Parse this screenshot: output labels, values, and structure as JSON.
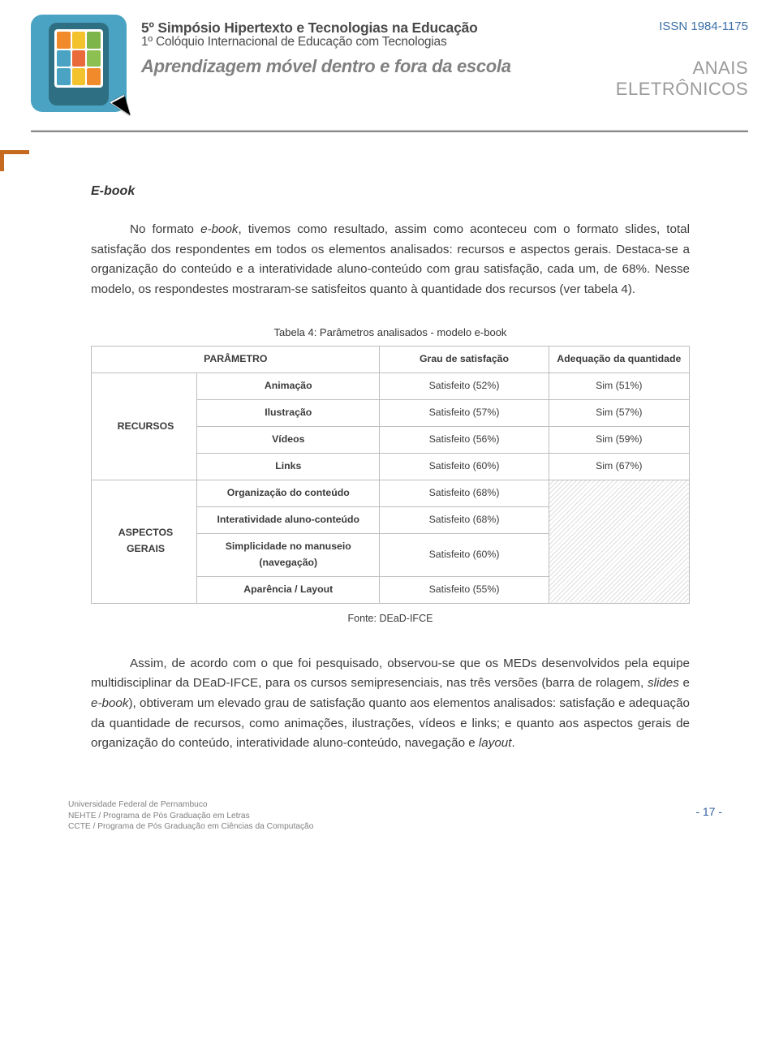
{
  "header": {
    "line1": "5º Simpósio Hipertexto e Tecnologias na Educação",
    "line2": "1º Colóquio Internacional de Educação com Tecnologias",
    "slogan": "Aprendizagem móvel dentro e fora da escola",
    "issn": "ISSN 1984-1175",
    "anais": "ANAIS ELETRÔNICOS",
    "logo_puzzle_colors": [
      "#f08a2a",
      "#f3c22d",
      "#7db54b",
      "#4aa3c3",
      "#e96a3a",
      "#8cc051",
      "#4aa3c3",
      "#f3c22d",
      "#f08a2a"
    ],
    "logo_bg": "#4aa3c3",
    "corner_color": "#c56a1f"
  },
  "section_title": "E-book",
  "paragraph1_parts": {
    "a": "No formato ",
    "b": "e-book",
    "c": ", tivemos como resultado, assim como aconteceu com o formato slides, total satisfação dos respondentes em todos os elementos analisados: recursos e aspectos gerais. Destaca-se a organização do conteúdo e a interatividade aluno-conteúdo com grau satisfação, cada um, de 68%. Nesse modelo, os respondestes mostraram-se satisfeitos quanto à quantidade dos recursos (ver tabela 4)."
  },
  "table": {
    "caption": "Tabela 4: Parâmetros analisados - modelo e-book",
    "headers": {
      "param": "PARÂMETRO",
      "grau": "Grau de satisfação",
      "adeq": "Adequação da quantidade"
    },
    "group_recursos_label": "RECURSOS",
    "group_aspectos_label": "ASPECTOS GERAIS",
    "recursos": [
      {
        "name": "Animação",
        "grau": "Satisfeito (52%)",
        "adeq": "Sim (51%)"
      },
      {
        "name": "Ilustração",
        "grau": "Satisfeito (57%)",
        "adeq": "Sim (57%)"
      },
      {
        "name": "Vídeos",
        "grau": "Satisfeito (56%)",
        "adeq": "Sim (59%)"
      },
      {
        "name": "Links",
        "grau": "Satisfeito (60%)",
        "adeq": "Sim (67%)"
      }
    ],
    "aspectos": [
      {
        "name": "Organização do conteúdo",
        "grau": "Satisfeito (68%)"
      },
      {
        "name": "Interatividade aluno-conteúdo",
        "grau": "Satisfeito (68%)"
      },
      {
        "name": "Simplicidade no manuseio (navegação)",
        "grau": "Satisfeito (60%)"
      },
      {
        "name": "Aparência / Layout",
        "grau": "Satisfeito (55%)"
      }
    ],
    "fonte": "Fonte: DEaD-IFCE",
    "border_color": "#bdbdbd",
    "font_size": 12.3
  },
  "paragraph2_parts": {
    "a": "Assim, de acordo com o que foi pesquisado, observou-se que os MEDs desenvolvidos pela equipe multidisciplinar da DEaD-IFCE, para os cursos semipresenciais, nas três versões (barra de rolagem, ",
    "b": "slides",
    "c": " e ",
    "d": "e-book",
    "e": "), obtiveram um elevado grau de satisfação quanto aos elementos analisados: satisfação e adequação da quantidade de recursos, como animações, ilustrações, vídeos e links; e quanto aos aspectos gerais de organização do conteúdo, interatividade aluno-conteúdo, navegação e ",
    "f": "layout",
    "g": "."
  },
  "footer": {
    "l1": "Universidade Federal de Pernambuco",
    "l2": "NEHTE / Programa de Pós Graduação em Letras",
    "l3": "CCTE / Programa de Pós Graduação em Ciências da Computação",
    "page": "- 17 -"
  },
  "colors": {
    "text": "#3b3b3b",
    "issn": "#3a6fa8",
    "anais": "#9a9a9a",
    "footer_text": "#808080",
    "page_num": "#2f5e9c",
    "rule_light": "#cfcfcf",
    "rule_dark": "#8b8b8b"
  }
}
